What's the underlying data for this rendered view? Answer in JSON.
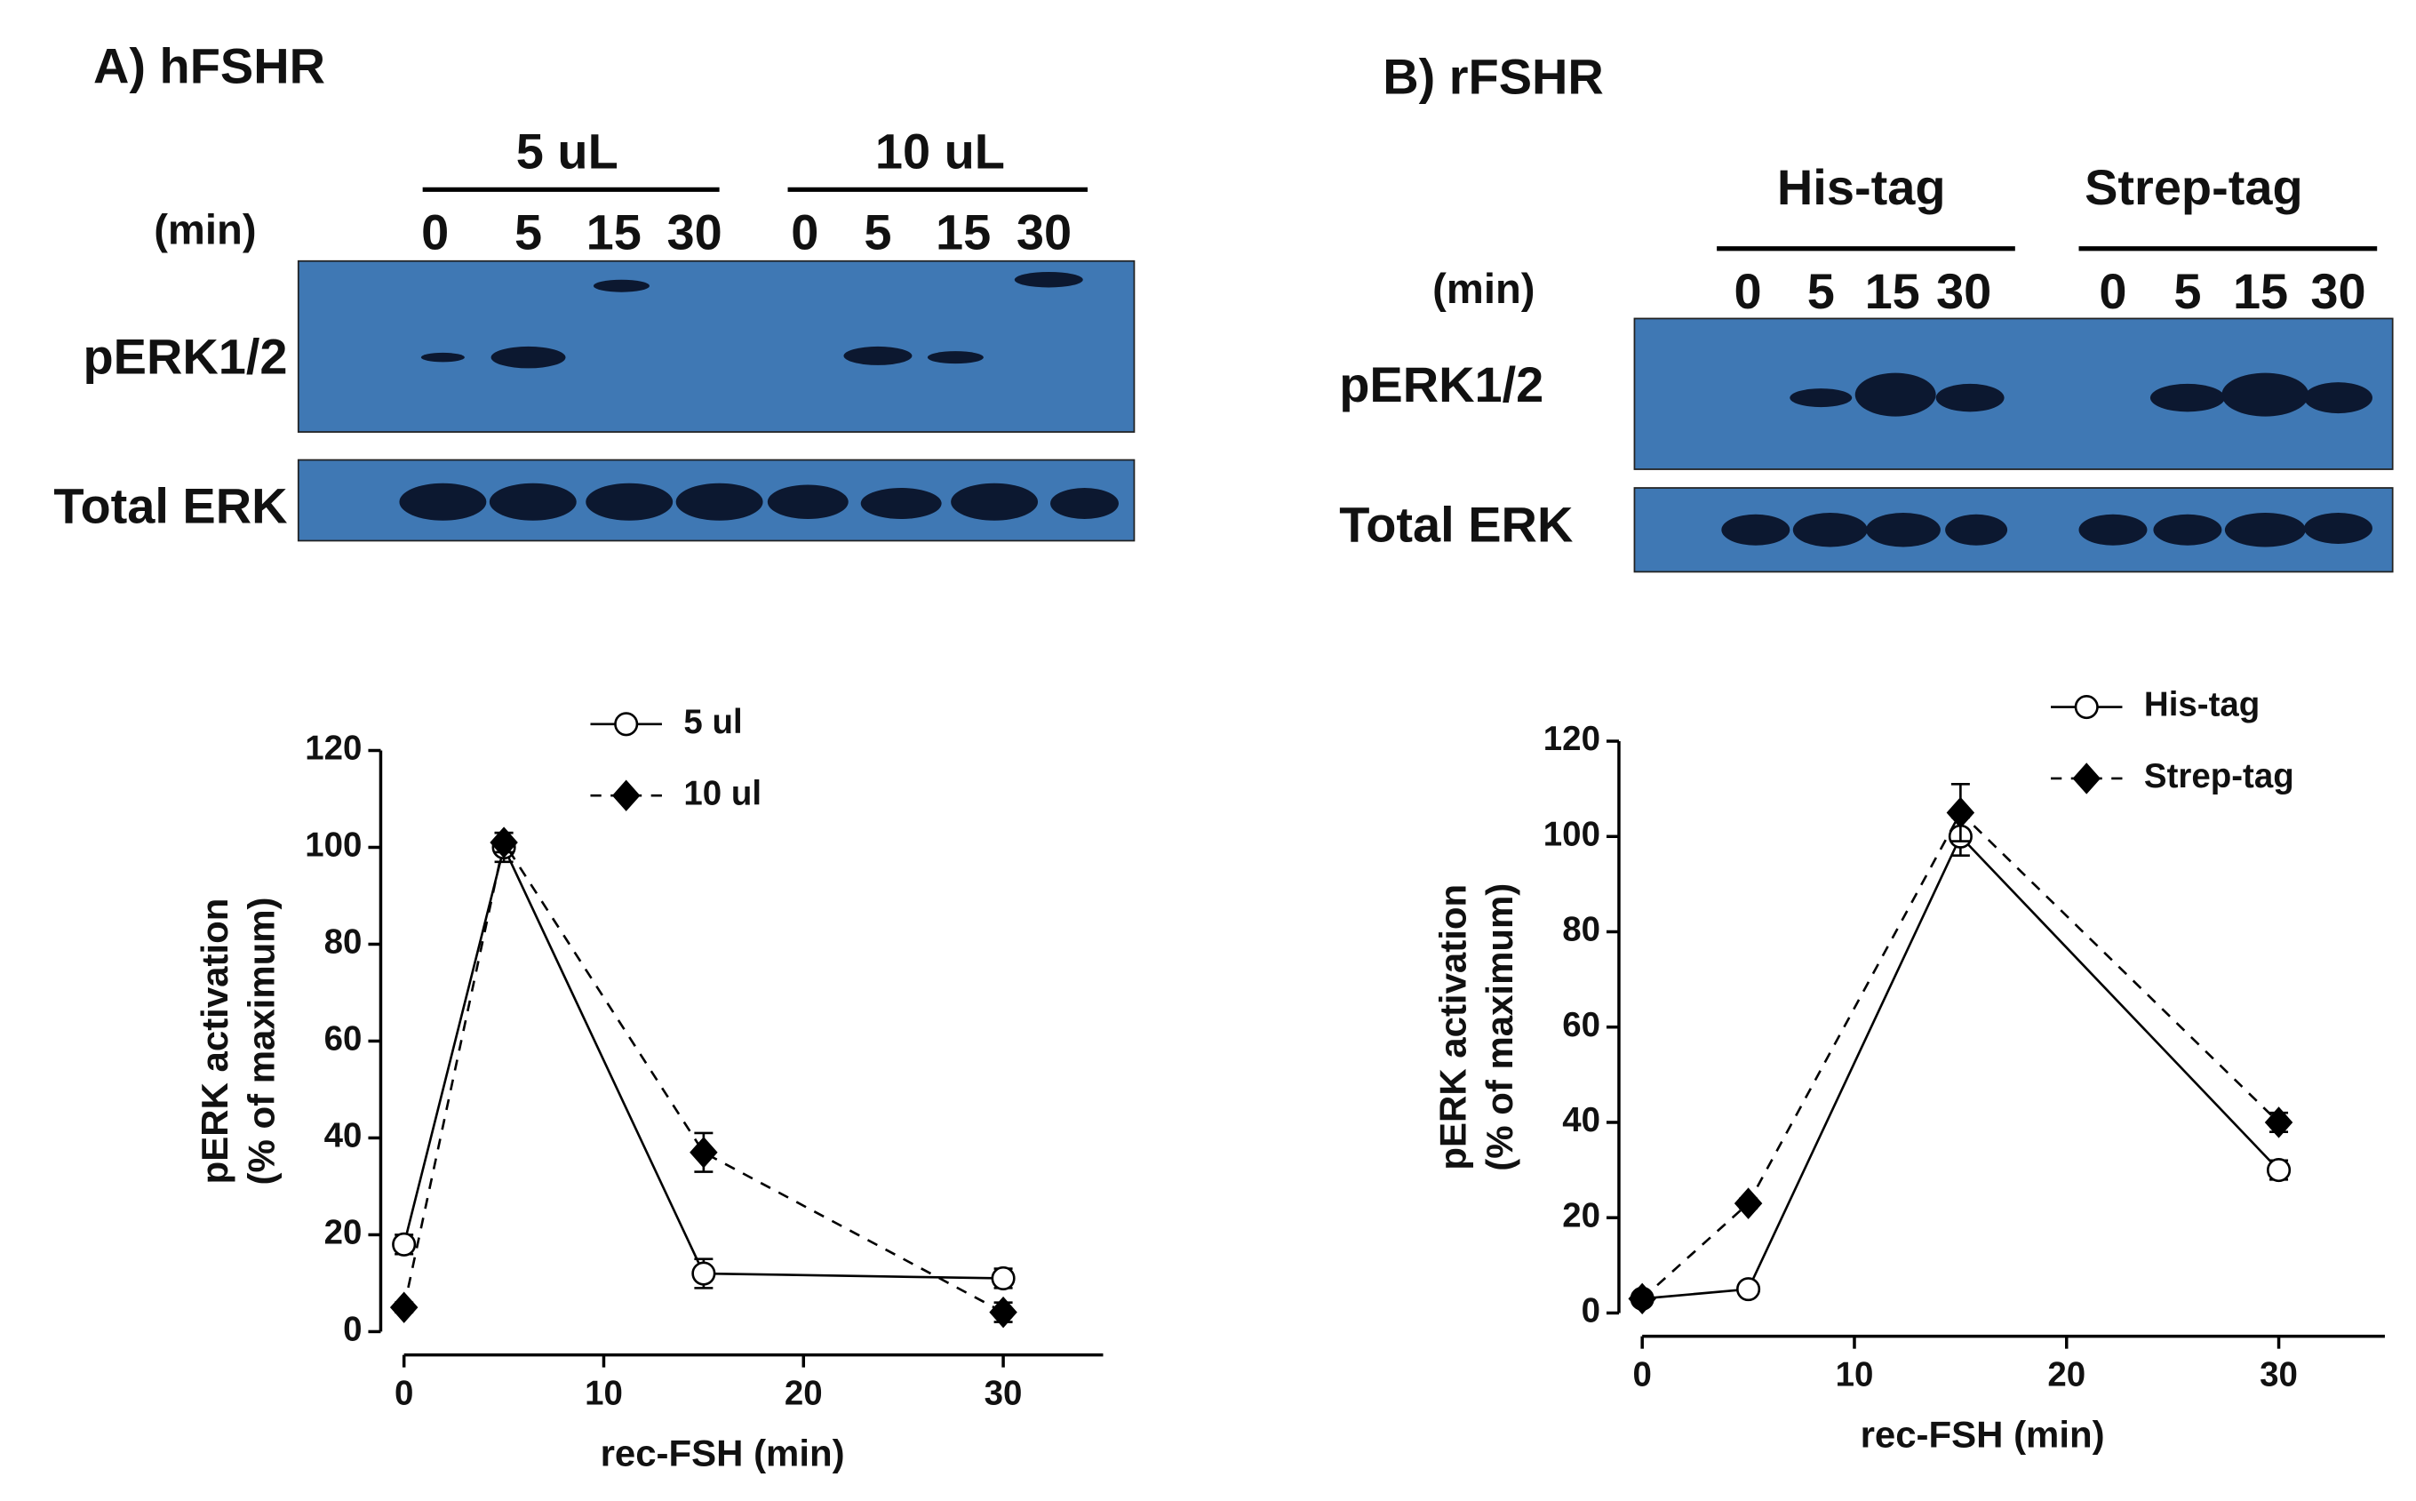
{
  "panels": [
    {
      "label": "A) hFSHR",
      "groups": [
        "5 uL",
        "10 uL"
      ],
      "min_label": "(min)",
      "lanes": [
        0,
        5,
        15,
        30,
        0,
        5,
        15,
        30
      ],
      "rows": [
        "pERK1/2",
        "Total ERK"
      ]
    },
    {
      "label": "B) rFSHR",
      "groups": [
        "His-tag",
        "Strep-tag"
      ],
      "min_label": "(min)",
      "lanes": [
        0,
        5,
        15,
        30,
        0,
        5,
        15,
        30
      ],
      "rows": [
        "pERK1/2",
        "Total ERK"
      ]
    }
  ],
  "chart_data": [
    {
      "type": "line",
      "x_label": "rec-FSH (min)",
      "y_label": [
        "pERK activation",
        "(% of maximum)"
      ],
      "x": [
        0,
        5,
        15,
        30
      ],
      "xlim": [
        0,
        35
      ],
      "xticks": [
        0,
        10,
        20,
        30
      ],
      "ylim": [
        0,
        120
      ],
      "yticks": [
        0,
        20,
        40,
        60,
        80,
        100,
        120
      ],
      "legend": "upper-center",
      "series": [
        {
          "name": "5 ul",
          "color": "#000000",
          "marker": "circle",
          "fill": "#ffffff",
          "linestyle": "solid",
          "values": [
            18,
            100,
            12,
            11
          ],
          "errors": [
            2,
            3,
            3,
            2
          ]
        },
        {
          "name": "10 ul",
          "color": "#000000",
          "marker": "diamond",
          "fill": "#000000",
          "linestyle": "dashed",
          "values": [
            5,
            101,
            37,
            4
          ],
          "errors": [
            1,
            2,
            4,
            2
          ]
        }
      ]
    },
    {
      "type": "line",
      "x_label": "rec-FSH (min)",
      "y_label": [
        "pERK activation",
        "(% of maximum)"
      ],
      "x": [
        0,
        5,
        15,
        30
      ],
      "xlim": [
        0,
        35
      ],
      "xticks": [
        0,
        10,
        20,
        30
      ],
      "ylim": [
        0,
        120
      ],
      "yticks": [
        0,
        20,
        40,
        60,
        80,
        100,
        120
      ],
      "legend": "upper-right",
      "series": [
        {
          "name": "His-tag",
          "color": "#000000",
          "marker": "circle",
          "fill": "#ffffff",
          "linestyle": "solid",
          "values": [
            3,
            5,
            100,
            30
          ],
          "errors": [
            1,
            1,
            4,
            2
          ]
        },
        {
          "name": "Strep-tag",
          "color": "#000000",
          "marker": "diamond",
          "fill": "#000000",
          "linestyle": "dashed",
          "values": [
            3,
            23,
            105,
            40
          ],
          "errors": [
            1,
            1,
            6,
            2
          ]
        }
      ]
    }
  ]
}
